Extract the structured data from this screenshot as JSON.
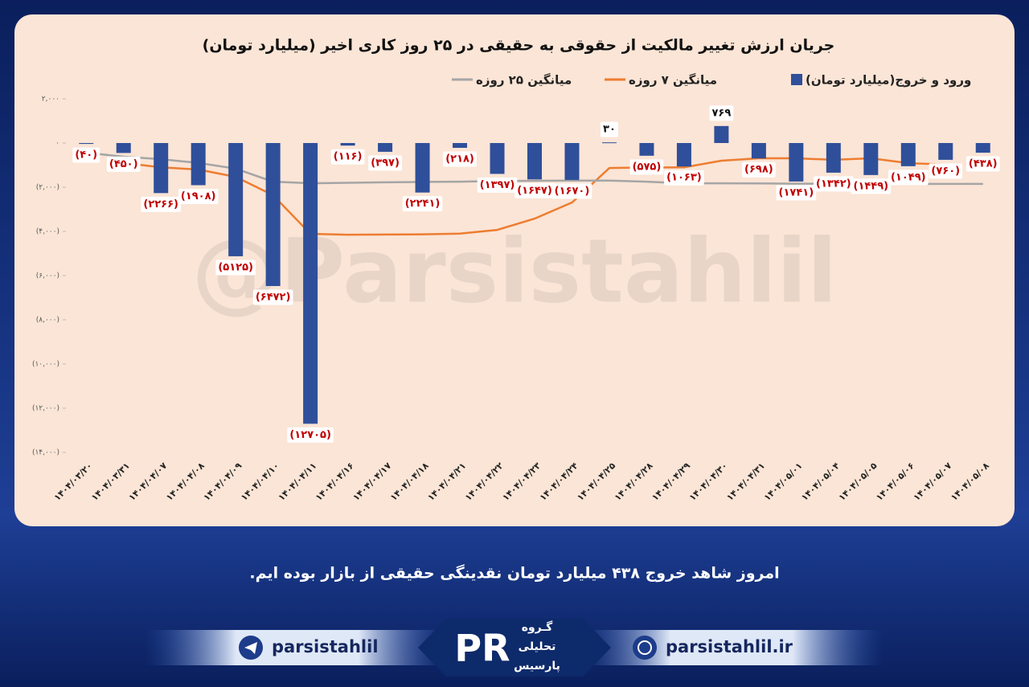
{
  "chart_data": {
    "type": "bar",
    "title": "جریان ارزش تغییر مالکیت از حقوقی به حقیقی در ۲۵ روز کاری اخیر (میلیارد تومان)",
    "watermark": "@Parsistahlil",
    "categories": [
      "۱۴۰۴/۰۳/۲۰",
      "۱۴۰۴/۰۳/۳۱",
      "۱۴۰۴/۰۴/۰۷",
      "۱۴۰۴/۰۴/۰۸",
      "۱۴۰۴/۰۴/۰۹",
      "۱۴۰۴/۰۴/۱۰",
      "۱۴۰۴/۰۴/۱۱",
      "۱۴۰۴/۰۴/۱۶",
      "۱۴۰۴/۰۴/۱۷",
      "۱۴۰۴/۰۴/۱۸",
      "۱۴۰۴/۰۴/۲۱",
      "۱۴۰۴/۰۴/۲۲",
      "۱۴۰۴/۰۴/۲۳",
      "۱۴۰۴/۰۴/۲۴",
      "۱۴۰۴/۰۴/۲۵",
      "۱۴۰۴/۰۴/۲۸",
      "۱۴۰۴/۰۴/۲۹",
      "۱۴۰۴/۰۴/۳۰",
      "۱۴۰۴/۰۴/۳۱",
      "۱۴۰۴/۰۵/۰۱",
      "۱۴۰۴/۰۵/۰۴",
      "۱۴۰۴/۰۵/۰۵",
      "۱۴۰۴/۰۵/۰۶",
      "۱۴۰۴/۰۵/۰۷",
      "۱۴۰۴/۰۵/۰۸"
    ],
    "series": [
      {
        "name": "ورود و خروج(میلیارد تومان)",
        "type": "bar",
        "color": "#2f4f9a",
        "values": [
          -40,
          -450,
          -2266,
          -1908,
          -5125,
          -6472,
          -12705,
          -116,
          -397,
          -2241,
          -218,
          -1397,
          -1647,
          -1670,
          30,
          -575,
          -1063,
          769,
          -698,
          -1741,
          -1342,
          -1449,
          -1049,
          -760,
          -438
        ],
        "value_labels": [
          "(۴۰)",
          "(۴۵۰)",
          "(۲۲۶۶)",
          "(۱۹۰۸)",
          "(۵۱۲۵)",
          "(۶۴۷۲)",
          "(۱۲۷۰۵)",
          "(۱۱۶)",
          "(۳۹۷)",
          "(۲۲۴۱)",
          "(۲۱۸)",
          "(۱۳۹۷)",
          "(۱۶۴۷)",
          "(۱۶۷۰)",
          "۳۰",
          "(۵۷۵)",
          "(۱۰۶۳)",
          "۷۶۹",
          "(۶۹۸)",
          "(۱۷۴۱)",
          "(۱۳۴۲)",
          "(۱۴۴۹)",
          "(۱۰۴۹)",
          "(۷۶۰)",
          "(۴۳۸)"
        ]
      },
      {
        "name": "میانگین ۷ روزه",
        "type": "line",
        "color": "#ed7d31",
        "values": [
          null,
          -900,
          -1100,
          -1200,
          -1530,
          -2360,
          -4110,
          -4150,
          -4140,
          -4130,
          -4100,
          -3930,
          -3420,
          -2690,
          -1130,
          -1110,
          -1100,
          -800,
          -690,
          -690,
          -760,
          -690,
          -910,
          -980,
          null
        ]
      },
      {
        "name": "میانگین ۲۵ روزه",
        "type": "line",
        "color": "#a5a5a5",
        "values": [
          -440,
          -620,
          -730,
          -900,
          -1160,
          -1750,
          -1820,
          -1800,
          -1780,
          -1760,
          -1750,
          -1720,
          -1710,
          -1700,
          -1700,
          -1750,
          -1820,
          -1820,
          -1830,
          -1840,
          -1840,
          -1840,
          -1850,
          -1850,
          -1850
        ]
      }
    ],
    "ylim": [
      -14000,
      2000
    ],
    "yticks": [
      {
        "value": 2000,
        "label": "۲,۰۰۰"
      },
      {
        "value": 0,
        "label": "۰"
      },
      {
        "value": -2000,
        "label": "(۲,۰۰۰)"
      },
      {
        "value": -4000,
        "label": "(۴,۰۰۰)"
      },
      {
        "value": -6000,
        "label": "(۶,۰۰۰)"
      },
      {
        "value": -8000,
        "label": "(۸,۰۰۰)"
      },
      {
        "value": -10000,
        "label": "(۱۰,۰۰۰)"
      },
      {
        "value": -12000,
        "label": "(۱۲,۰۰۰)"
      },
      {
        "value": -14000,
        "label": "(۱۴,۰۰۰)"
      }
    ],
    "grid": false
  },
  "footer": {
    "text": "امروز شاهد خروج ۴۳۸ میلیارد تومان نقدینگی حقیقی از بازار بوده ایم.",
    "telegram": "parsistahlil",
    "website": "parsistahlil.ir",
    "logo": [
      "گـروه",
      "تحلیلی",
      "پارسیس"
    ]
  }
}
